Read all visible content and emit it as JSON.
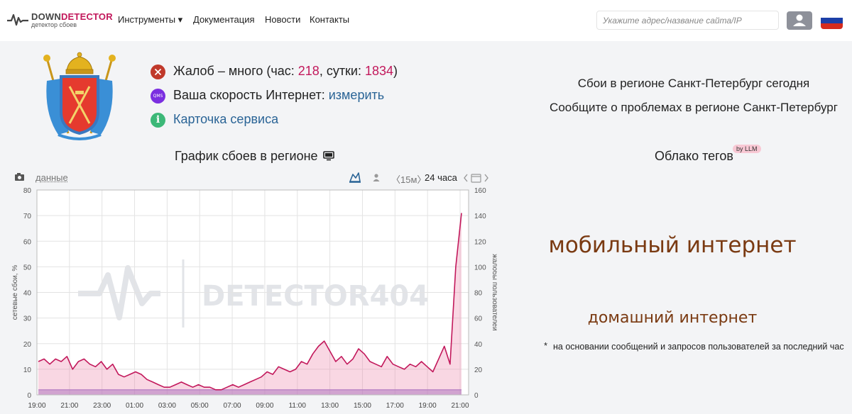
{
  "brand": {
    "name_part1": "DOWN",
    "name_part2": "DETECTOR",
    "subtitle": "детектор сбоев",
    "accent_color": "#c2185b"
  },
  "nav": {
    "items": [
      {
        "label": "Инструменты ▾"
      },
      {
        "label": "Документация"
      },
      {
        "label": "Новости"
      },
      {
        "label": "Контакты"
      }
    ]
  },
  "search": {
    "placeholder": "Укажите адрес/название сайта/IP",
    "value": ""
  },
  "status": {
    "complaints_prefix": "Жалоб – много (час: ",
    "complaints_hour": "218",
    "complaints_mid": ", сутки: ",
    "complaints_day": "1834",
    "complaints_suffix": ")",
    "speed_label": "Ваша скорость Интернет: ",
    "speed_link": "измерить",
    "speed_icon_text": "QMS",
    "card_link": "Карточка сервиса"
  },
  "region": {
    "outages_today": "Сбои в регионе Санкт-Петербург сегодня",
    "report_problems": "Сообщите о проблемах в регионе Санкт-Петербург"
  },
  "chart_section": {
    "title": "График сбоев в регионе",
    "data_link": "данные",
    "range_15m": "〈15м〉",
    "range_24h": "24 часа"
  },
  "tags": {
    "title": "Облако тегов",
    "badge": "by LLM",
    "items": [
      {
        "text": "мобильный интернет"
      },
      {
        "text": "домашний интернет"
      }
    ],
    "note_star": "*",
    "note": "на основании сообщений и запросов пользователей за последний час"
  },
  "chart_data": {
    "type": "area",
    "watermark": "DETECTOR404",
    "ylabel_left": "сетевые сбои, %",
    "ylabel_right": "жалобы пользователей",
    "ylim_left": [
      0,
      80
    ],
    "ylim_right": [
      0,
      160
    ],
    "yticks_left": [
      "0",
      "10",
      "20",
      "30",
      "40",
      "50",
      "60",
      "70",
      "80"
    ],
    "yticks_right": [
      "0",
      "20",
      "40",
      "60",
      "80",
      "100",
      "120",
      "140",
      "160"
    ],
    "xticks": [
      "19:00",
      "21:00",
      "23:00",
      "01:00",
      "03:00",
      "05:00",
      "07:00",
      "09:00",
      "11:00",
      "13:00",
      "15:00",
      "17:00",
      "19:00",
      "21:00"
    ],
    "x_hours_note": "points every 30 min from 19:00 to 20:30 next day",
    "series": [
      {
        "name": "",
        "axis": "left",
        "color": "#c2185b",
        "values": [
          13,
          14,
          12,
          14,
          13,
          15,
          10,
          13,
          14,
          12,
          11,
          13,
          10,
          12,
          8,
          7,
          8,
          9,
          8,
          6,
          5,
          4,
          3,
          3,
          4,
          5,
          4,
          3,
          4,
          3,
          3,
          2,
          2,
          3,
          4,
          3,
          4,
          5,
          6,
          7,
          9,
          8,
          11,
          10,
          9,
          10,
          13,
          12,
          16,
          19,
          21,
          17,
          13,
          15,
          12,
          14,
          18,
          16,
          13,
          12,
          11,
          15,
          12,
          11,
          10,
          12,
          11,
          13,
          11,
          9,
          14,
          19,
          12,
          50,
          71
        ]
      },
      {
        "name": "",
        "axis": "left",
        "color": "#9575cd",
        "values": [
          2,
          2,
          2,
          2,
          2,
          2,
          2,
          2,
          2,
          2,
          2,
          2,
          2,
          2,
          2,
          2,
          2,
          2,
          2,
          2,
          2,
          2,
          2,
          2,
          2,
          2,
          2,
          2,
          2,
          2,
          2,
          2,
          2,
          2,
          2,
          2,
          2,
          2,
          2,
          2,
          2,
          2,
          2,
          2,
          2,
          2,
          2,
          2,
          2,
          2,
          2,
          2,
          2,
          2,
          2,
          2,
          2,
          2,
          2,
          2,
          2,
          2,
          2,
          2,
          2,
          2,
          2,
          2,
          2,
          2,
          2,
          2,
          2,
          2,
          2
        ]
      }
    ],
    "grid": true,
    "legend": "none"
  }
}
